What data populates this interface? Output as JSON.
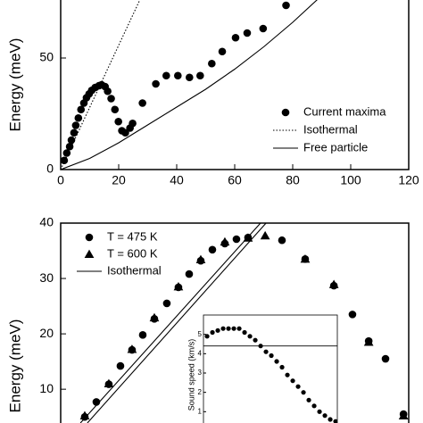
{
  "chart_data": [
    {
      "type": "scatter",
      "ylabel": "Energy (meV)",
      "xlim": [
        0,
        120
      ],
      "ylim": [
        0,
        78
      ],
      "xticks": [
        0,
        20,
        40,
        60,
        80,
        100,
        120
      ],
      "yticks": [
        0,
        50
      ],
      "legend": "lower right",
      "series": [
        {
          "name": "Current maxima",
          "marker": "circle",
          "color": "#000",
          "x": [
            1.2,
            2.1,
            3.1,
            3.7,
            4.6,
            5.2,
            6.1,
            7.0,
            8.0,
            8.9,
            9.8,
            10.7,
            11.9,
            13.2,
            14.1,
            15.3,
            16.2,
            17.4,
            18.7,
            19.9,
            21.1,
            22.3,
            23.9,
            24.8,
            28.2,
            32.8,
            36.4,
            40.4,
            44.4,
            48.1,
            52.1,
            55.7,
            60.3,
            64.3,
            69.8,
            77.7
          ],
          "values": [
            4.1,
            7.4,
            10.3,
            13.2,
            16.5,
            19.8,
            23.1,
            26.9,
            29.8,
            32.2,
            33.9,
            35.5,
            36.8,
            37.6,
            38.0,
            37.2,
            35.1,
            31.8,
            26.9,
            21.5,
            17.4,
            16.5,
            18.6,
            20.7,
            29.8,
            38.4,
            42.1,
            42.1,
            41.3,
            42.1,
            47.5,
            52.9,
            59.1,
            61.2,
            63.2,
            73.6
          ]
        },
        {
          "name": "Isothermal",
          "marker": "line",
          "linestyle": "dotted",
          "color": "#000",
          "x": [
            0,
            28
          ],
          "values": [
            0,
            78
          ]
        },
        {
          "name": "Free particle",
          "marker": "line",
          "linestyle": "solid",
          "color": "#000",
          "x": [
            0,
            10,
            20,
            30,
            40,
            50,
            60,
            70,
            80,
            90
          ],
          "values": [
            0,
            5,
            12,
            20,
            28,
            36,
            45,
            55,
            66,
            78
          ]
        }
      ]
    },
    {
      "type": "scatter",
      "ylabel": "Energy (meV)",
      "xlim": [
        0,
        120
      ],
      "ylim": [
        3.9,
        40
      ],
      "yticks": [
        10,
        20,
        30,
        40
      ],
      "legend": "upper left",
      "series": [
        {
          "name": "T = 475 K",
          "marker": "circle",
          "color": "#000",
          "x": [
            8.3,
            12.3,
            16.6,
            20.6,
            24.6,
            28.3,
            32.3,
            36.6,
            40.6,
            44.3,
            48.3,
            52.3,
            56.6,
            60.6,
            64.6,
            76.3,
            84.3,
            94.2,
            100.6,
            106.2,
            112.0,
            118.2
          ],
          "values": [
            5.0,
            7.7,
            10.9,
            14.2,
            17.1,
            19.8,
            22.7,
            25.5,
            28.4,
            30.8,
            33.2,
            35.2,
            36.3,
            37.1,
            37.4,
            36.9,
            33.5,
            28.7,
            23.5,
            18.7,
            15.5,
            5.5
          ]
        },
        {
          "name": "T = 600 K",
          "marker": "triangle",
          "color": "#000",
          "x": [
            8.3,
            16.6,
            24.6,
            32.3,
            40.6,
            48.3,
            56.6,
            64.6,
            70.5,
            84.3,
            94.2,
            106.2,
            118.2
          ],
          "values": [
            5.2,
            11.0,
            17.2,
            22.9,
            28.5,
            33.4,
            36.6,
            37.3,
            37.7,
            33.5,
            28.9,
            18.5,
            5.2
          ]
        },
        {
          "name": "Isothermal",
          "marker": "line",
          "linestyle": "solid",
          "color": "#000",
          "x": [
            6.8,
            68.9
          ],
          "values": [
            3.9,
            40
          ]
        },
        {
          "marker": "line",
          "linestyle": "solid",
          "color": "#000",
          "x": [
            9.2,
            70.8
          ],
          "values": [
            3.9,
            40
          ]
        }
      ]
    },
    {
      "type": "scatter",
      "ylabel": "Sound speed (km/s)",
      "xlim": [
        0,
        100
      ],
      "ylim": [
        0,
        6
      ],
      "yticks": [
        1,
        2,
        3,
        4,
        5
      ],
      "series": [
        {
          "marker": "circle",
          "color": "#000",
          "x": [
            2.7,
            6.7,
            10.7,
            14.7,
            18.7,
            22.7,
            26.7,
            30.7,
            34.7,
            38.7,
            42.7,
            46.7,
            50.7,
            54.7,
            58.7,
            62.7,
            66.7,
            70.7,
            74.7,
            78.7,
            82.7,
            86.7,
            90.7,
            94.7,
            98.7
          ],
          "values": [
            4.9,
            5.1,
            5.2,
            5.3,
            5.3,
            5.3,
            5.3,
            5.1,
            4.9,
            4.7,
            4.4,
            4.1,
            3.9,
            3.6,
            3.3,
            2.9,
            2.6,
            2.3,
            2.0,
            1.6,
            1.3,
            1.0,
            0.8,
            0.6,
            0.5
          ]
        },
        {
          "marker": "line",
          "linestyle": "solid",
          "color": "#000",
          "x": [
            0,
            100
          ],
          "values": [
            4.4,
            4.4
          ]
        }
      ]
    }
  ]
}
